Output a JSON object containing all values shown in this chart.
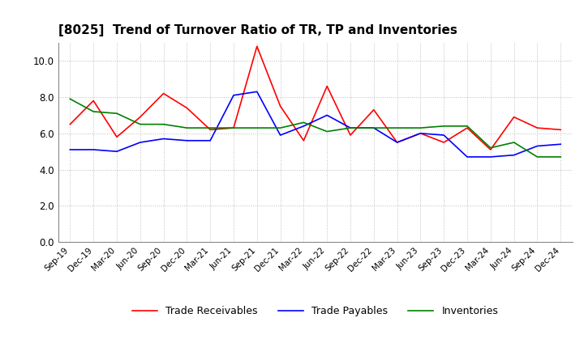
{
  "title": "[8025]  Trend of Turnover Ratio of TR, TP and Inventories",
  "x_labels": [
    "Sep-19",
    "Dec-19",
    "Mar-20",
    "Jun-20",
    "Sep-20",
    "Dec-20",
    "Mar-21",
    "Jun-21",
    "Sep-21",
    "Dec-21",
    "Mar-22",
    "Jun-22",
    "Sep-22",
    "Dec-22",
    "Mar-23",
    "Jun-23",
    "Sep-23",
    "Dec-23",
    "Mar-24",
    "Jun-24",
    "Sep-24",
    "Dec-24"
  ],
  "trade_receivables": [
    6.5,
    7.8,
    5.8,
    6.9,
    8.2,
    7.4,
    6.2,
    6.3,
    10.8,
    7.5,
    5.6,
    8.6,
    5.9,
    7.3,
    5.5,
    6.0,
    5.5,
    6.3,
    5.1,
    6.9,
    6.3,
    6.2
  ],
  "trade_payables": [
    5.1,
    5.1,
    5.0,
    5.5,
    5.7,
    5.6,
    5.6,
    8.1,
    8.3,
    5.9,
    6.4,
    7.0,
    6.3,
    6.3,
    5.5,
    6.0,
    5.9,
    4.7,
    4.7,
    4.8,
    5.3,
    5.4
  ],
  "inventories": [
    7.9,
    7.2,
    7.1,
    6.5,
    6.5,
    6.3,
    6.3,
    6.3,
    6.3,
    6.3,
    6.6,
    6.1,
    6.3,
    6.3,
    6.3,
    6.3,
    6.4,
    6.4,
    5.2,
    5.5,
    4.7,
    4.7
  ],
  "tr_color": "#ff0000",
  "tp_color": "#0000ff",
  "inv_color": "#008000",
  "ylim": [
    0,
    11
  ],
  "yticks": [
    0.0,
    2.0,
    4.0,
    6.0,
    8.0,
    10.0
  ],
  "background_color": "#ffffff",
  "grid_color": "#aaaaaa",
  "legend_labels": [
    "Trade Receivables",
    "Trade Payables",
    "Inventories"
  ]
}
